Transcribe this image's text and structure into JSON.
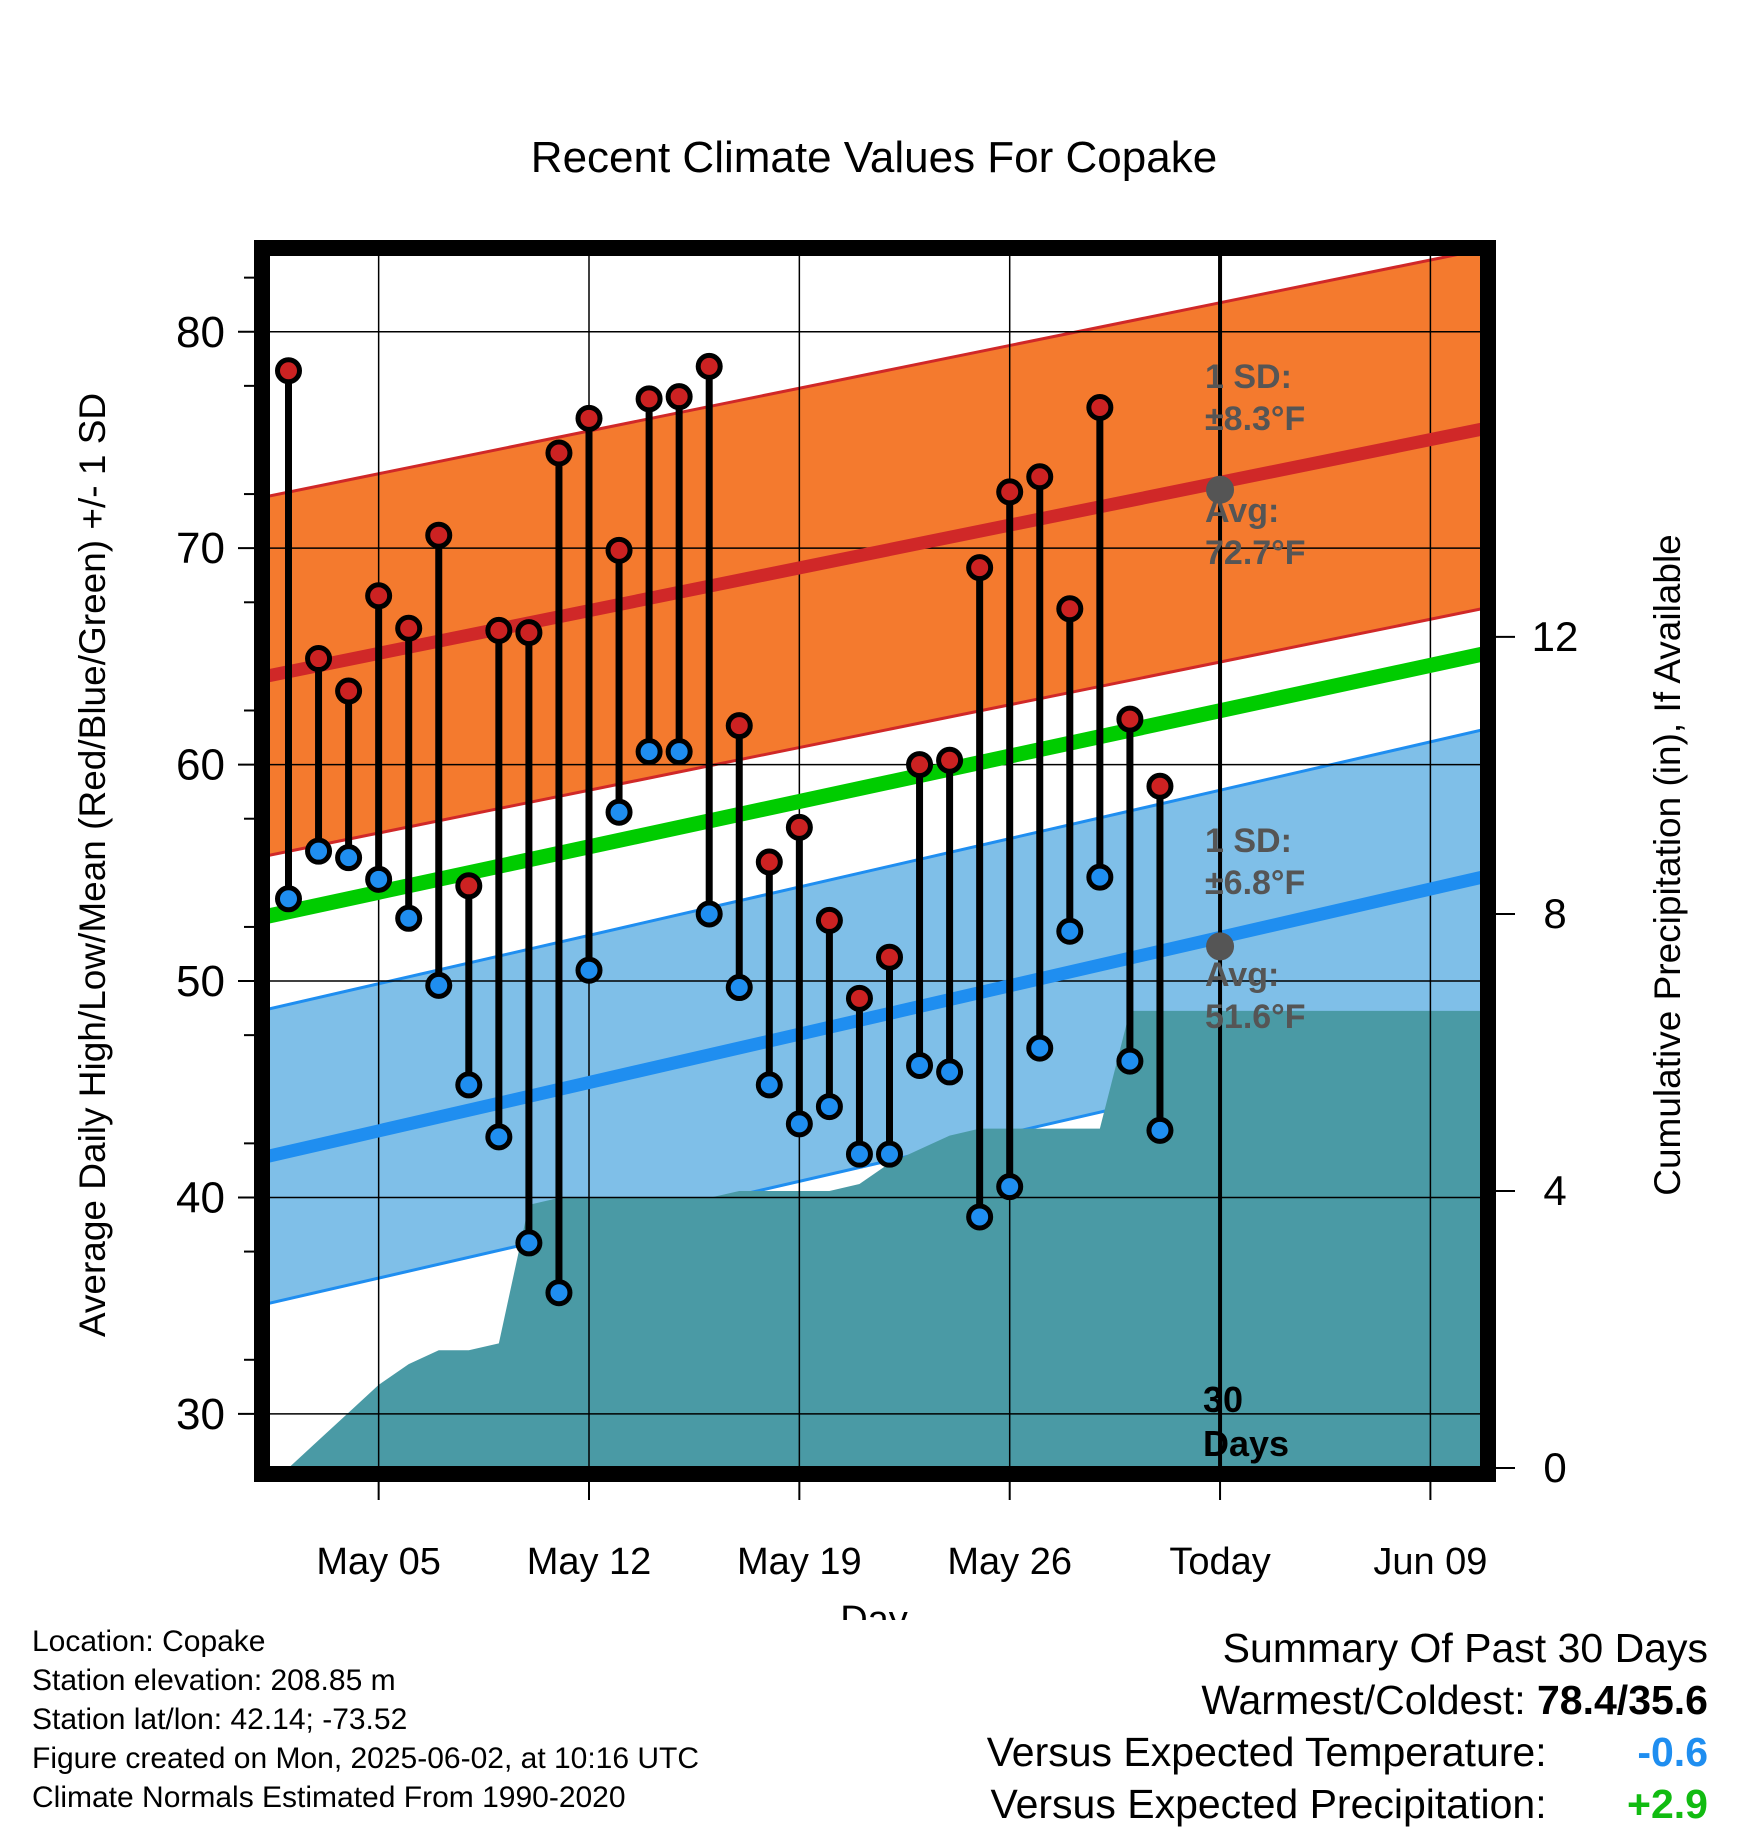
{
  "chart_data": {
    "type": "line",
    "title": "Recent Climate Values For Copake",
    "xlabel": "Day",
    "ylabel": "Average Daily High/Low/Mean (Red/Blue/Green) +/- 1 SD",
    "y2label": "Cumulative Precipitation (in), If Available",
    "ylim": [
      27.5,
      83.5
    ],
    "y2lim": [
      0,
      17.5
    ],
    "x_ticks": [
      "May 05",
      "May 12",
      "May 19",
      "May 26",
      "Today",
      "Jun 09"
    ],
    "y_ticks": [
      30,
      40,
      50,
      60,
      70,
      80
    ],
    "y2_ticks": [
      0,
      4,
      8,
      12
    ],
    "grid": true,
    "day_index": [
      1,
      2,
      3,
      4,
      5,
      6,
      7,
      8,
      9,
      10,
      11,
      12,
      13,
      14,
      15,
      16,
      17,
      18,
      19,
      20,
      21,
      22,
      23,
      24,
      25,
      26,
      27,
      28,
      29,
      30
    ],
    "highs": [
      78.2,
      64.9,
      63.4,
      67.8,
      66.3,
      70.6,
      54.4,
      66.2,
      66.1,
      74.4,
      76.0,
      69.9,
      76.9,
      77.0,
      78.4,
      61.8,
      55.5,
      57.1,
      52.8,
      49.2,
      51.1,
      60.0,
      60.2,
      69.1,
      72.6,
      73.3,
      67.2,
      76.5,
      62.1,
      59.0
    ],
    "lows": [
      53.8,
      56.0,
      55.7,
      54.7,
      52.9,
      49.8,
      45.2,
      42.8,
      37.9,
      35.6,
      50.5,
      57.8,
      60.6,
      60.6,
      53.1,
      49.7,
      45.2,
      43.4,
      44.2,
      42.0,
      42.0,
      46.1,
      45.8,
      39.1,
      40.5,
      46.9,
      52.3,
      54.8,
      46.3,
      43.1
    ],
    "normal_high": {
      "start": 64.1,
      "end": 75.5
    },
    "normal_low": {
      "start": 41.9,
      "end": 54.8
    },
    "normal_mean": {
      "start": 53.0,
      "end": 65.1
    },
    "high_sd": 8.3,
    "low_sd": 6.8,
    "precip_cumulative": [
      0.0,
      0.4,
      0.8,
      1.2,
      1.5,
      1.7,
      1.7,
      1.8,
      3.8,
      3.9,
      3.9,
      3.9,
      3.9,
      3.9,
      3.9,
      4.0,
      4.0,
      4.0,
      4.0,
      4.1,
      4.4,
      4.6,
      4.8,
      4.9,
      4.9,
      4.9,
      4.9,
      4.9,
      6.6,
      6.6
    ],
    "series": [
      {
        "name": "",
        "color": "#cc2222"
      },
      {
        "name": "",
        "color": "#1f8ef0"
      },
      {
        "name": "",
        "color": "#00cc00"
      }
    ],
    "annotations": {
      "high_sd_label_1": "1 SD:",
      "high_sd_label_2": "±8.3°F",
      "high_avg_label_1": "Avg:",
      "high_avg_label_2": "72.7°F",
      "low_sd_label_1": "1 SD:",
      "low_sd_label_2": "±6.8°F",
      "low_avg_label_1": "Avg:",
      "low_avg_label_2": "51.6°F",
      "days_label_1": "30",
      "days_label_2": "Days"
    },
    "today_high_avg": 72.7,
    "today_low_avg": 51.6
  },
  "colors": {
    "high_band": "#f47a2e",
    "low_band": "#7fbfe8",
    "high_line": "#d02828",
    "low_line": "#1f8ef0",
    "mean_line": "#00cc00",
    "precip": "#4a9aa5",
    "high_marker": "#cc2222",
    "low_marker": "#1f8ef0",
    "annotation": "#555555",
    "temp_delta": "#1f8ef0",
    "precip_delta": "#11bb11"
  },
  "info": {
    "location": "Location: Copake",
    "elevation": "Station elevation: 208.85 m",
    "latlon": "Station lat/lon: 42.14; -73.52",
    "created": "Figure created on Mon, 2025-06-02, at 10:16 UTC",
    "normals": "Climate Normals Estimated From 1990-2020"
  },
  "summary": {
    "heading": "Summary Of Past 30 Days",
    "warm_cold_label": "Warmest/Coldest:",
    "warm_cold_value": "78.4/35.6",
    "temp_label": "Versus Expected Temperature:",
    "temp_value": "-0.6",
    "precip_label": "Versus Expected Precipitation:",
    "precip_value": "+2.9"
  }
}
